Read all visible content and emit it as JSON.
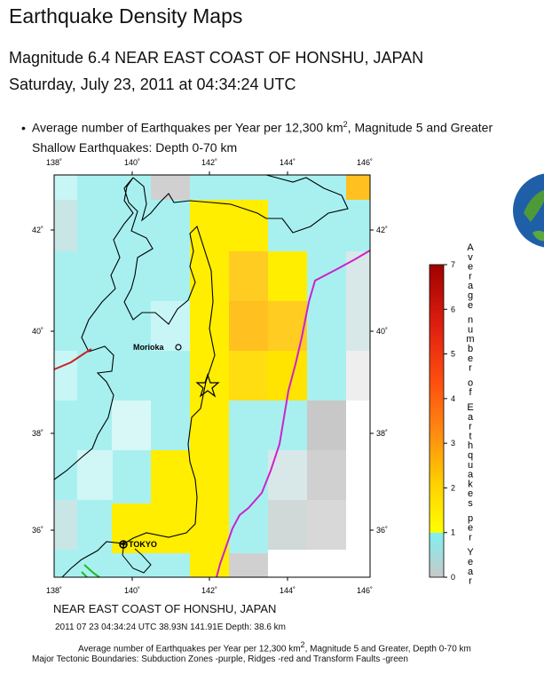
{
  "header": {
    "title": "Earthquake Density Maps",
    "subtitle": "Magnitude 6.4 NEAR EAST COAST OF HONSHU, JAPAN",
    "datetime": "Saturday, July 23, 2011 at 04:34:24 UTC"
  },
  "description": {
    "bullet_pre": "Average number of Earthquakes per Year per 12,300 km",
    "bullet_post": ", Magnitude 5 and Greater",
    "sup": "2",
    "shallow": "Shallow Earthquakes: Depth 0-70 km"
  },
  "map": {
    "lon_ticks": [
      "138˚",
      "140˚",
      "142˚",
      "144˚",
      "146˚"
    ],
    "lat_ticks": [
      "42˚",
      "40˚",
      "38˚",
      "36˚"
    ],
    "city_morioka": "Morioka",
    "city_tokyo": "TOKYO",
    "place": "NEAR EAST COAST OF HONSHU, JAPAN",
    "details": "2011 07 23 04:34:24 UTC 38.93N 141.91E Depth: 38.6 km",
    "colors": {
      "subduction": "#cc22cc",
      "ridge": "#cc2222",
      "transform": "#22bb22"
    }
  },
  "legend": {
    "ticks": [
      "0",
      "1",
      "2",
      "3",
      "4",
      "5",
      "6",
      "7"
    ],
    "vertical_label": "Average number of Earthquakes per Year"
  },
  "footer": {
    "line1_pre": "Average number of Earthquakes per Year per 12,300 km",
    "line1_sup": "2",
    "line1_post": ", Magnitude 5 and Greater, Depth 0-70 km",
    "line2": "Major Tectonic Boundaries: Subduction Zones -purple, Ridges -red and Transform Faults -green"
  }
}
